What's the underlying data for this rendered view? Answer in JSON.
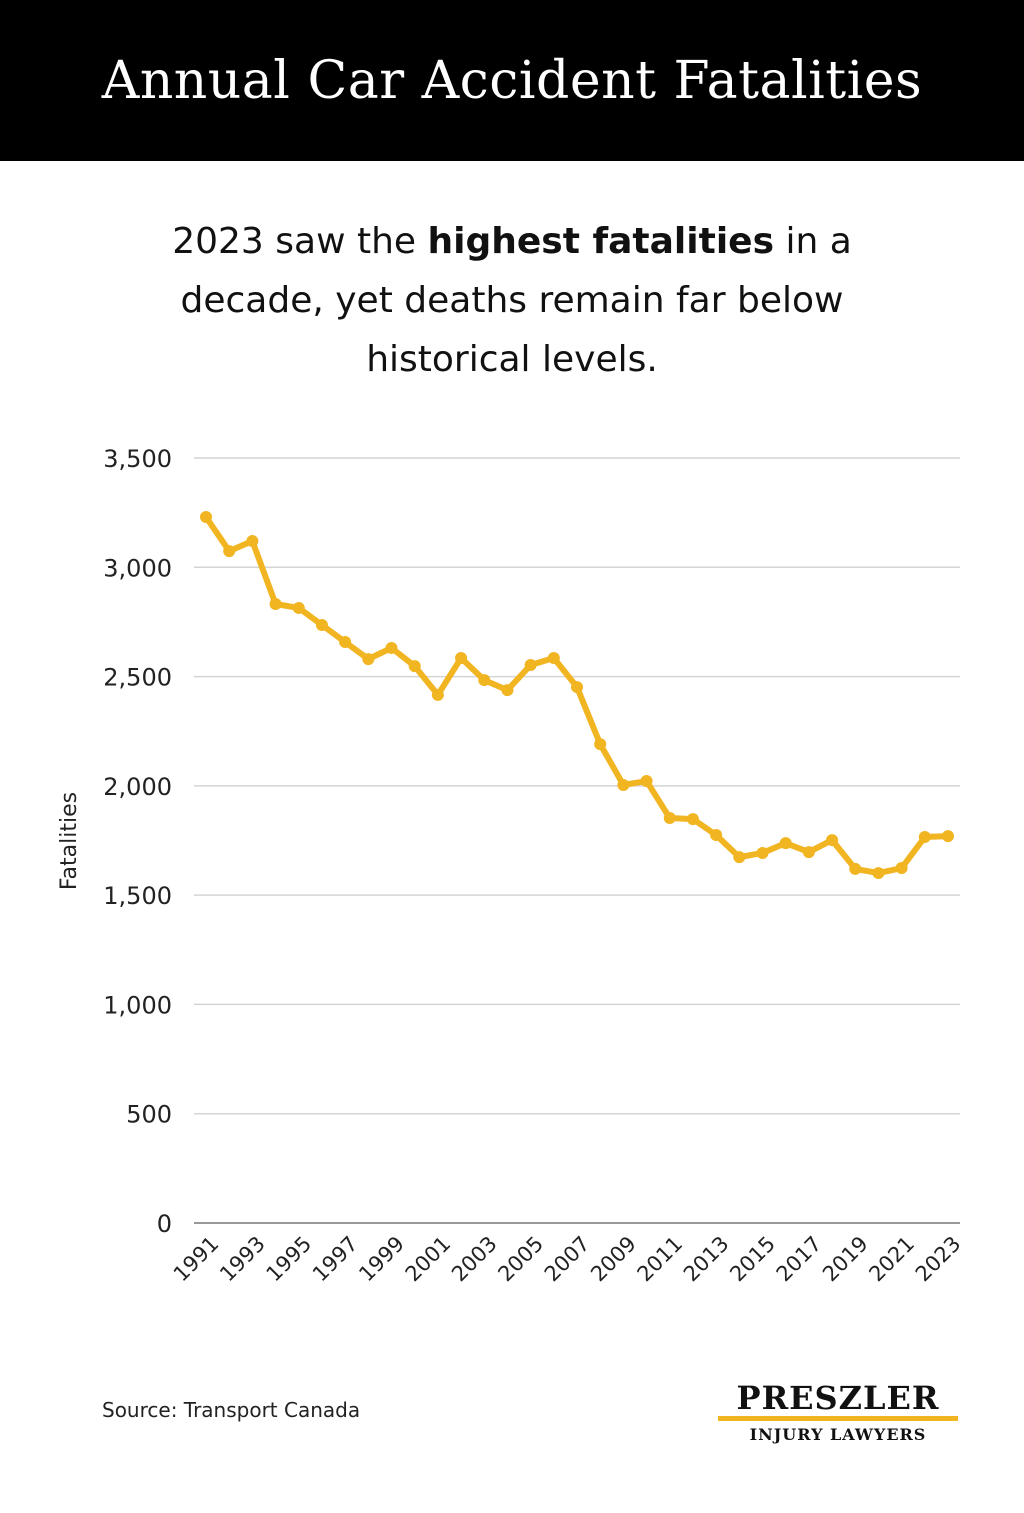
{
  "header": {
    "title": "Annual Car Accident Fatalities"
  },
  "subtitle": {
    "pre": "2023 saw the ",
    "bold": "highest fatalities",
    "post": " in a decade, yet deaths remain far below historical levels."
  },
  "chart_data": {
    "type": "line",
    "title": "",
    "xlabel": "",
    "ylabel": "Fatalities",
    "ylim": [
      0,
      3500
    ],
    "yticks": [
      0,
      500,
      1000,
      1500,
      2000,
      2500,
      3000,
      3500
    ],
    "ytick_labels": [
      "0",
      "500",
      "1,000",
      "1,500",
      "2,000",
      "2,500",
      "3,000",
      "3,500"
    ],
    "xtick_labels": [
      "1991",
      "1993",
      "1995",
      "1997",
      "1999",
      "2001",
      "2003",
      "2005",
      "2007",
      "2009",
      "2011",
      "2013",
      "2015",
      "2017",
      "2019",
      "2021",
      "2023"
    ],
    "grid": "horizontal",
    "legend": "none",
    "color": "#f2b522",
    "x": [
      1991,
      1992,
      1993,
      1994,
      1995,
      1996,
      1997,
      1998,
      1999,
      2000,
      2001,
      2002,
      2003,
      2004,
      2005,
      2006,
      2007,
      2008,
      2009,
      2010,
      2011,
      2012,
      2013,
      2014,
      2015,
      2016,
      2017,
      2018,
      2019,
      2020,
      2021,
      2022,
      2023
    ],
    "values": [
      3230,
      3074,
      3120,
      2832,
      2814,
      2736,
      2658,
      2580,
      2631,
      2548,
      2416,
      2585,
      2484,
      2438,
      2553,
      2585,
      2452,
      2191,
      2004,
      2022,
      1853,
      1848,
      1775,
      1674,
      1693,
      1738,
      1697,
      1752,
      1620,
      1601,
      1624,
      1766,
      1770
    ]
  },
  "footer": {
    "source": "Source: Transport Canada"
  },
  "logo": {
    "name": "PRESZLER",
    "sub": "INJURY LAWYERS"
  }
}
